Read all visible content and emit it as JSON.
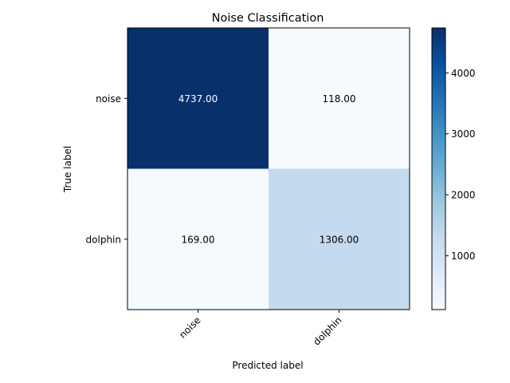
{
  "chart_data": {
    "type": "heatmap",
    "title": "Noise Classification",
    "xlabel": "Predicted label",
    "ylabel": "True label",
    "x_categories": [
      "noise",
      "dolphin"
    ],
    "y_categories": [
      "noise",
      "dolphin"
    ],
    "values": [
      [
        4737,
        118
      ],
      [
        169,
        1306
      ]
    ],
    "value_labels": [
      [
        "4737.00",
        "118.00"
      ],
      [
        "169.00",
        "1306.00"
      ]
    ],
    "colormap": "Blues",
    "colorbar": {
      "min": 118,
      "max": 4737,
      "ticks": [
        1000,
        2000,
        3000,
        4000
      ],
      "tick_labels": [
        "1000",
        "2000",
        "3000",
        "4000"
      ]
    },
    "grid": false
  }
}
